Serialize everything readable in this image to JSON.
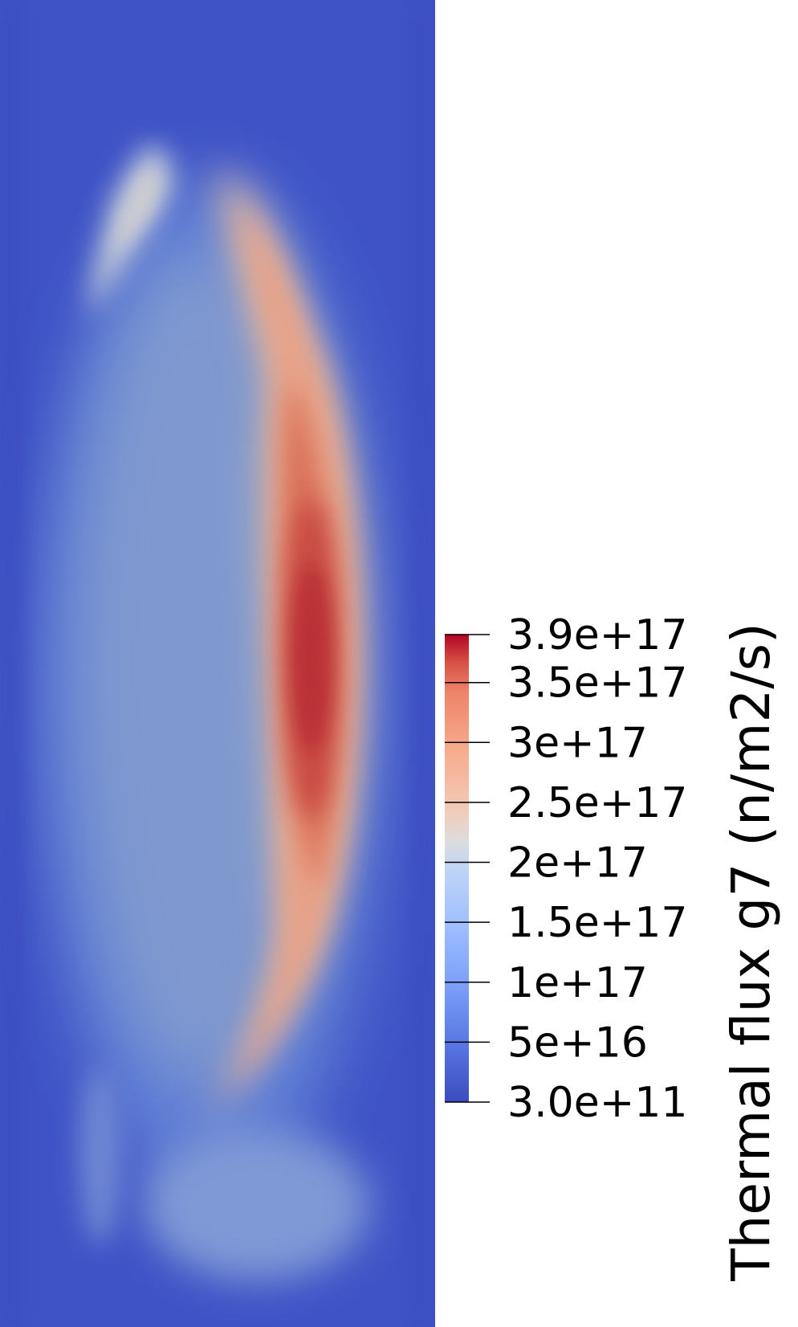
{
  "chart_data": {
    "type": "heatmap",
    "title": "",
    "colorbar": {
      "title": "Thermal flux g7 (n/m2/s)",
      "colormap": "coolwarm",
      "range": [
        300000000000.0,
        3.9e+17
      ],
      "ticks": [
        {
          "value": 3.9e+17,
          "label": "3.9e+17"
        },
        {
          "value": 3.5e+17,
          "label": "3.5e+17"
        },
        {
          "value": 3e+17,
          "label": "3e+17"
        },
        {
          "value": 2.5e+17,
          "label": "2.5e+17"
        },
        {
          "value": 2e+17,
          "label": "2e+17"
        },
        {
          "value": 1.5e+17,
          "label": "1.5e+17"
        },
        {
          "value": 1e+17,
          "label": "1e+17"
        },
        {
          "value": 5e+16,
          "label": "5e+16"
        },
        {
          "value": 300000000000.0,
          "label": "3.0e+11"
        }
      ],
      "colors": {
        "low": "#3b4cc0",
        "mid": "#dddddd",
        "high": "#b40426"
      }
    },
    "field": {
      "background_level": 0.05,
      "features": [
        {
          "name": "main-crescent",
          "peak": 1.0
        },
        {
          "name": "upper-left-lobe",
          "peak": 0.52
        },
        {
          "name": "lower-left-faint",
          "peak": 0.22
        },
        {
          "name": "central-plateau",
          "peak": 0.3
        }
      ]
    }
  }
}
